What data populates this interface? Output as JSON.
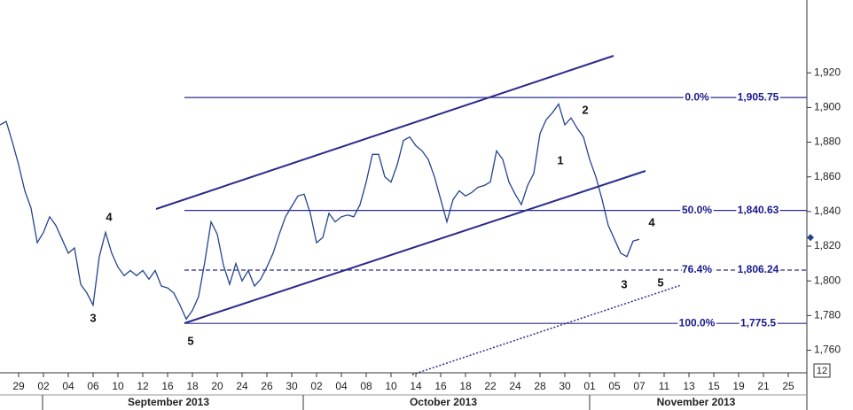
{
  "chart_data": {
    "type": "line",
    "x": [
      -1.5,
      -1,
      -0.5,
      0,
      0.5,
      1,
      1.5,
      2,
      2.5,
      3,
      3.5,
      4,
      4.5,
      5,
      5.5,
      6,
      6.5,
      7,
      7.5,
      8,
      8.5,
      9,
      9.5,
      10,
      10.5,
      11,
      11.5,
      12,
      12.5,
      13,
      13.5,
      14,
      14.5,
      15,
      15.5,
      16,
      16.5,
      17,
      17.5,
      18,
      18.5,
      19,
      19.5,
      20,
      20.5,
      21,
      21.5,
      22,
      22.5,
      23,
      23.5,
      24,
      24.5,
      25,
      25.5,
      26,
      26.5,
      27,
      27.5,
      28,
      28.5,
      29,
      29.5,
      30,
      30.5,
      31,
      31.5,
      32,
      32.5,
      33,
      33.5,
      34,
      34.5,
      35,
      35.5,
      36,
      36.5,
      37,
      37.5,
      38,
      38.5,
      39,
      39.5,
      40,
      40.5,
      41,
      41.5,
      42,
      42.5,
      43,
      43.5,
      44,
      44.5,
      45,
      45.5,
      46,
      46.5,
      47,
      47.5,
      48,
      48.5,
      49,
      49.5,
      50
    ],
    "series": [
      {
        "color": "#24448e",
        "values": [
          1890,
          1892,
          1880,
          1867,
          1852,
          1842,
          1822,
          1828,
          1837,
          1832,
          1824,
          1816,
          1819,
          1798,
          1793,
          1786,
          1814,
          1828,
          1816,
          1808,
          1803,
          1806,
          1803,
          1806,
          1801,
          1806,
          1797,
          1796,
          1793,
          1786,
          1778,
          1783,
          1791,
          1811,
          1834,
          1827,
          1809,
          1798,
          1810,
          1800,
          1806,
          1797,
          1801,
          1808,
          1816,
          1827,
          1837,
          1843,
          1849,
          1850,
          1839,
          1822,
          1825,
          1839,
          1834,
          1837,
          1838,
          1837,
          1844,
          1857,
          1873,
          1873,
          1860,
          1857,
          1867,
          1881,
          1883,
          1878,
          1875,
          1870,
          1860,
          1847,
          1834,
          1847,
          1852,
          1849,
          1851,
          1854,
          1855,
          1857,
          1875,
          1870,
          1857,
          1850,
          1844,
          1855,
          1862,
          1885,
          1893,
          1897,
          1902,
          1890,
          1894,
          1888,
          1883,
          1870,
          1860,
          1847,
          1832,
          1824,
          1816,
          1814,
          1823,
          1824
        ]
      }
    ],
    "xlim": [
      -1.5,
      63.5
    ],
    "xticks": [
      {
        "value": 0,
        "label": "29"
      },
      {
        "value": 2,
        "label": "02"
      },
      {
        "value": 4,
        "label": "04"
      },
      {
        "value": 6,
        "label": "06"
      },
      {
        "value": 8,
        "label": "10"
      },
      {
        "value": 10,
        "label": "12"
      },
      {
        "value": 12,
        "label": "16"
      },
      {
        "value": 14,
        "label": "18"
      },
      {
        "value": 16,
        "label": "20"
      },
      {
        "value": 18,
        "label": "24"
      },
      {
        "value": 20,
        "label": "26"
      },
      {
        "value": 22,
        "label": "30"
      },
      {
        "value": 24,
        "label": "02"
      },
      {
        "value": 26,
        "label": "04"
      },
      {
        "value": 28,
        "label": "08"
      },
      {
        "value": 30,
        "label": "10"
      },
      {
        "value": 32,
        "label": "14"
      },
      {
        "value": 34,
        "label": "16"
      },
      {
        "value": 36,
        "label": "18"
      },
      {
        "value": 38,
        "label": "22"
      },
      {
        "value": 40,
        "label": "24"
      },
      {
        "value": 42,
        "label": "28"
      },
      {
        "value": 44,
        "label": "30"
      },
      {
        "value": 46,
        "label": "01"
      },
      {
        "value": 48,
        "label": "05"
      },
      {
        "value": 50,
        "label": "07"
      },
      {
        "value": 52,
        "label": "11"
      },
      {
        "value": 54,
        "label": "13"
      },
      {
        "value": 56,
        "label": "15"
      },
      {
        "value": 58,
        "label": "19"
      },
      {
        "value": 60,
        "label": "21"
      },
      {
        "value": 62,
        "label": "25"
      }
    ],
    "ylim": [
      1747,
      1962
    ],
    "yticks": [
      {
        "value": 1760,
        "label": "1,760"
      },
      {
        "value": 1780,
        "label": "1,780"
      },
      {
        "value": 1800,
        "label": "1,800"
      },
      {
        "value": 1820,
        "label": "1,820"
      },
      {
        "value": 1840,
        "label": "1,840"
      },
      {
        "value": 1860,
        "label": "1,860"
      },
      {
        "value": 1880,
        "label": "1,880"
      },
      {
        "value": 1900,
        "label": "1,900"
      },
      {
        "value": 1920,
        "label": "1,920"
      }
    ],
    "months": [
      "September 2013",
      "October 2013",
      "November 2013"
    ],
    "fib_levels": [
      {
        "label": "0.0%",
        "value": 1905.75,
        "value_label": "1,905.75",
        "line_style": "solid"
      },
      {
        "label": "50.0%",
        "value": 1840.63,
        "value_label": "1,840.63",
        "line_style": "solid"
      },
      {
        "label": "76.4%",
        "value": 1806.24,
        "value_label": "1,806.24",
        "line_style": "dashed"
      },
      {
        "label": "100.0%",
        "value": 1775.5,
        "value_label": "1,775.5",
        "line_style": "solid"
      }
    ],
    "fib_color": "#2b2b8c",
    "annotations": [
      "3",
      "4",
      "5",
      "1",
      "2",
      "4",
      "3",
      "5"
    ],
    "last_value": 1825,
    "corner_label": "12"
  }
}
